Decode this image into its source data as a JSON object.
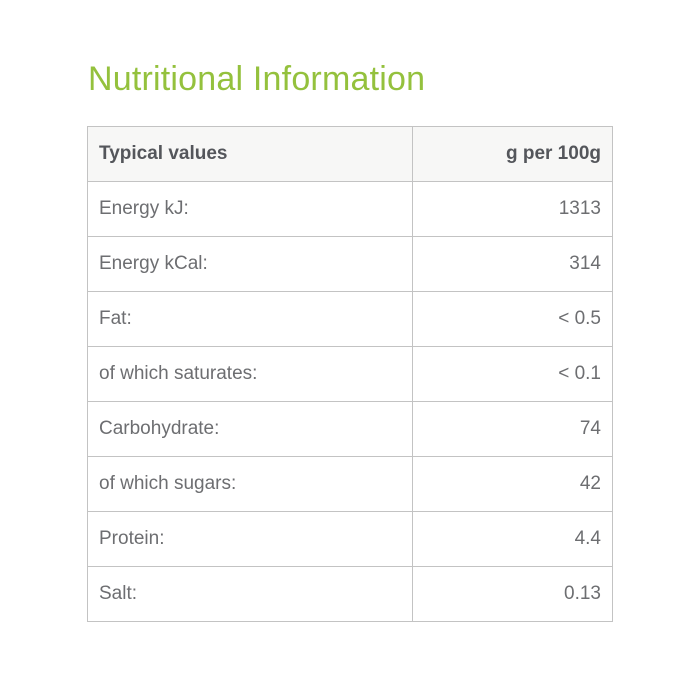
{
  "title": {
    "text": "Nutritional Information"
  },
  "colors": {
    "title_green": "#94c13d",
    "header_text": "#54565b",
    "body_text": "#6d6e71",
    "header_background": "#f7f7f6",
    "border": "#c3c3c3"
  },
  "table": {
    "header": {
      "label": "Typical values",
      "value": "g per 100g"
    },
    "rows": [
      {
        "label": "Energy kJ:",
        "value": "1313"
      },
      {
        "label": "Energy kCal:",
        "value": "314"
      },
      {
        "label": "Fat:",
        "value": "< 0.5"
      },
      {
        "label": "of which saturates:",
        "value": "< 0.1"
      },
      {
        "label": "Carbohydrate:",
        "value": "74"
      },
      {
        "label": "of which sugars:",
        "value": "42"
      },
      {
        "label": "Protein:",
        "value": "4.4"
      },
      {
        "label": "Salt:",
        "value": "0.13"
      }
    ]
  }
}
